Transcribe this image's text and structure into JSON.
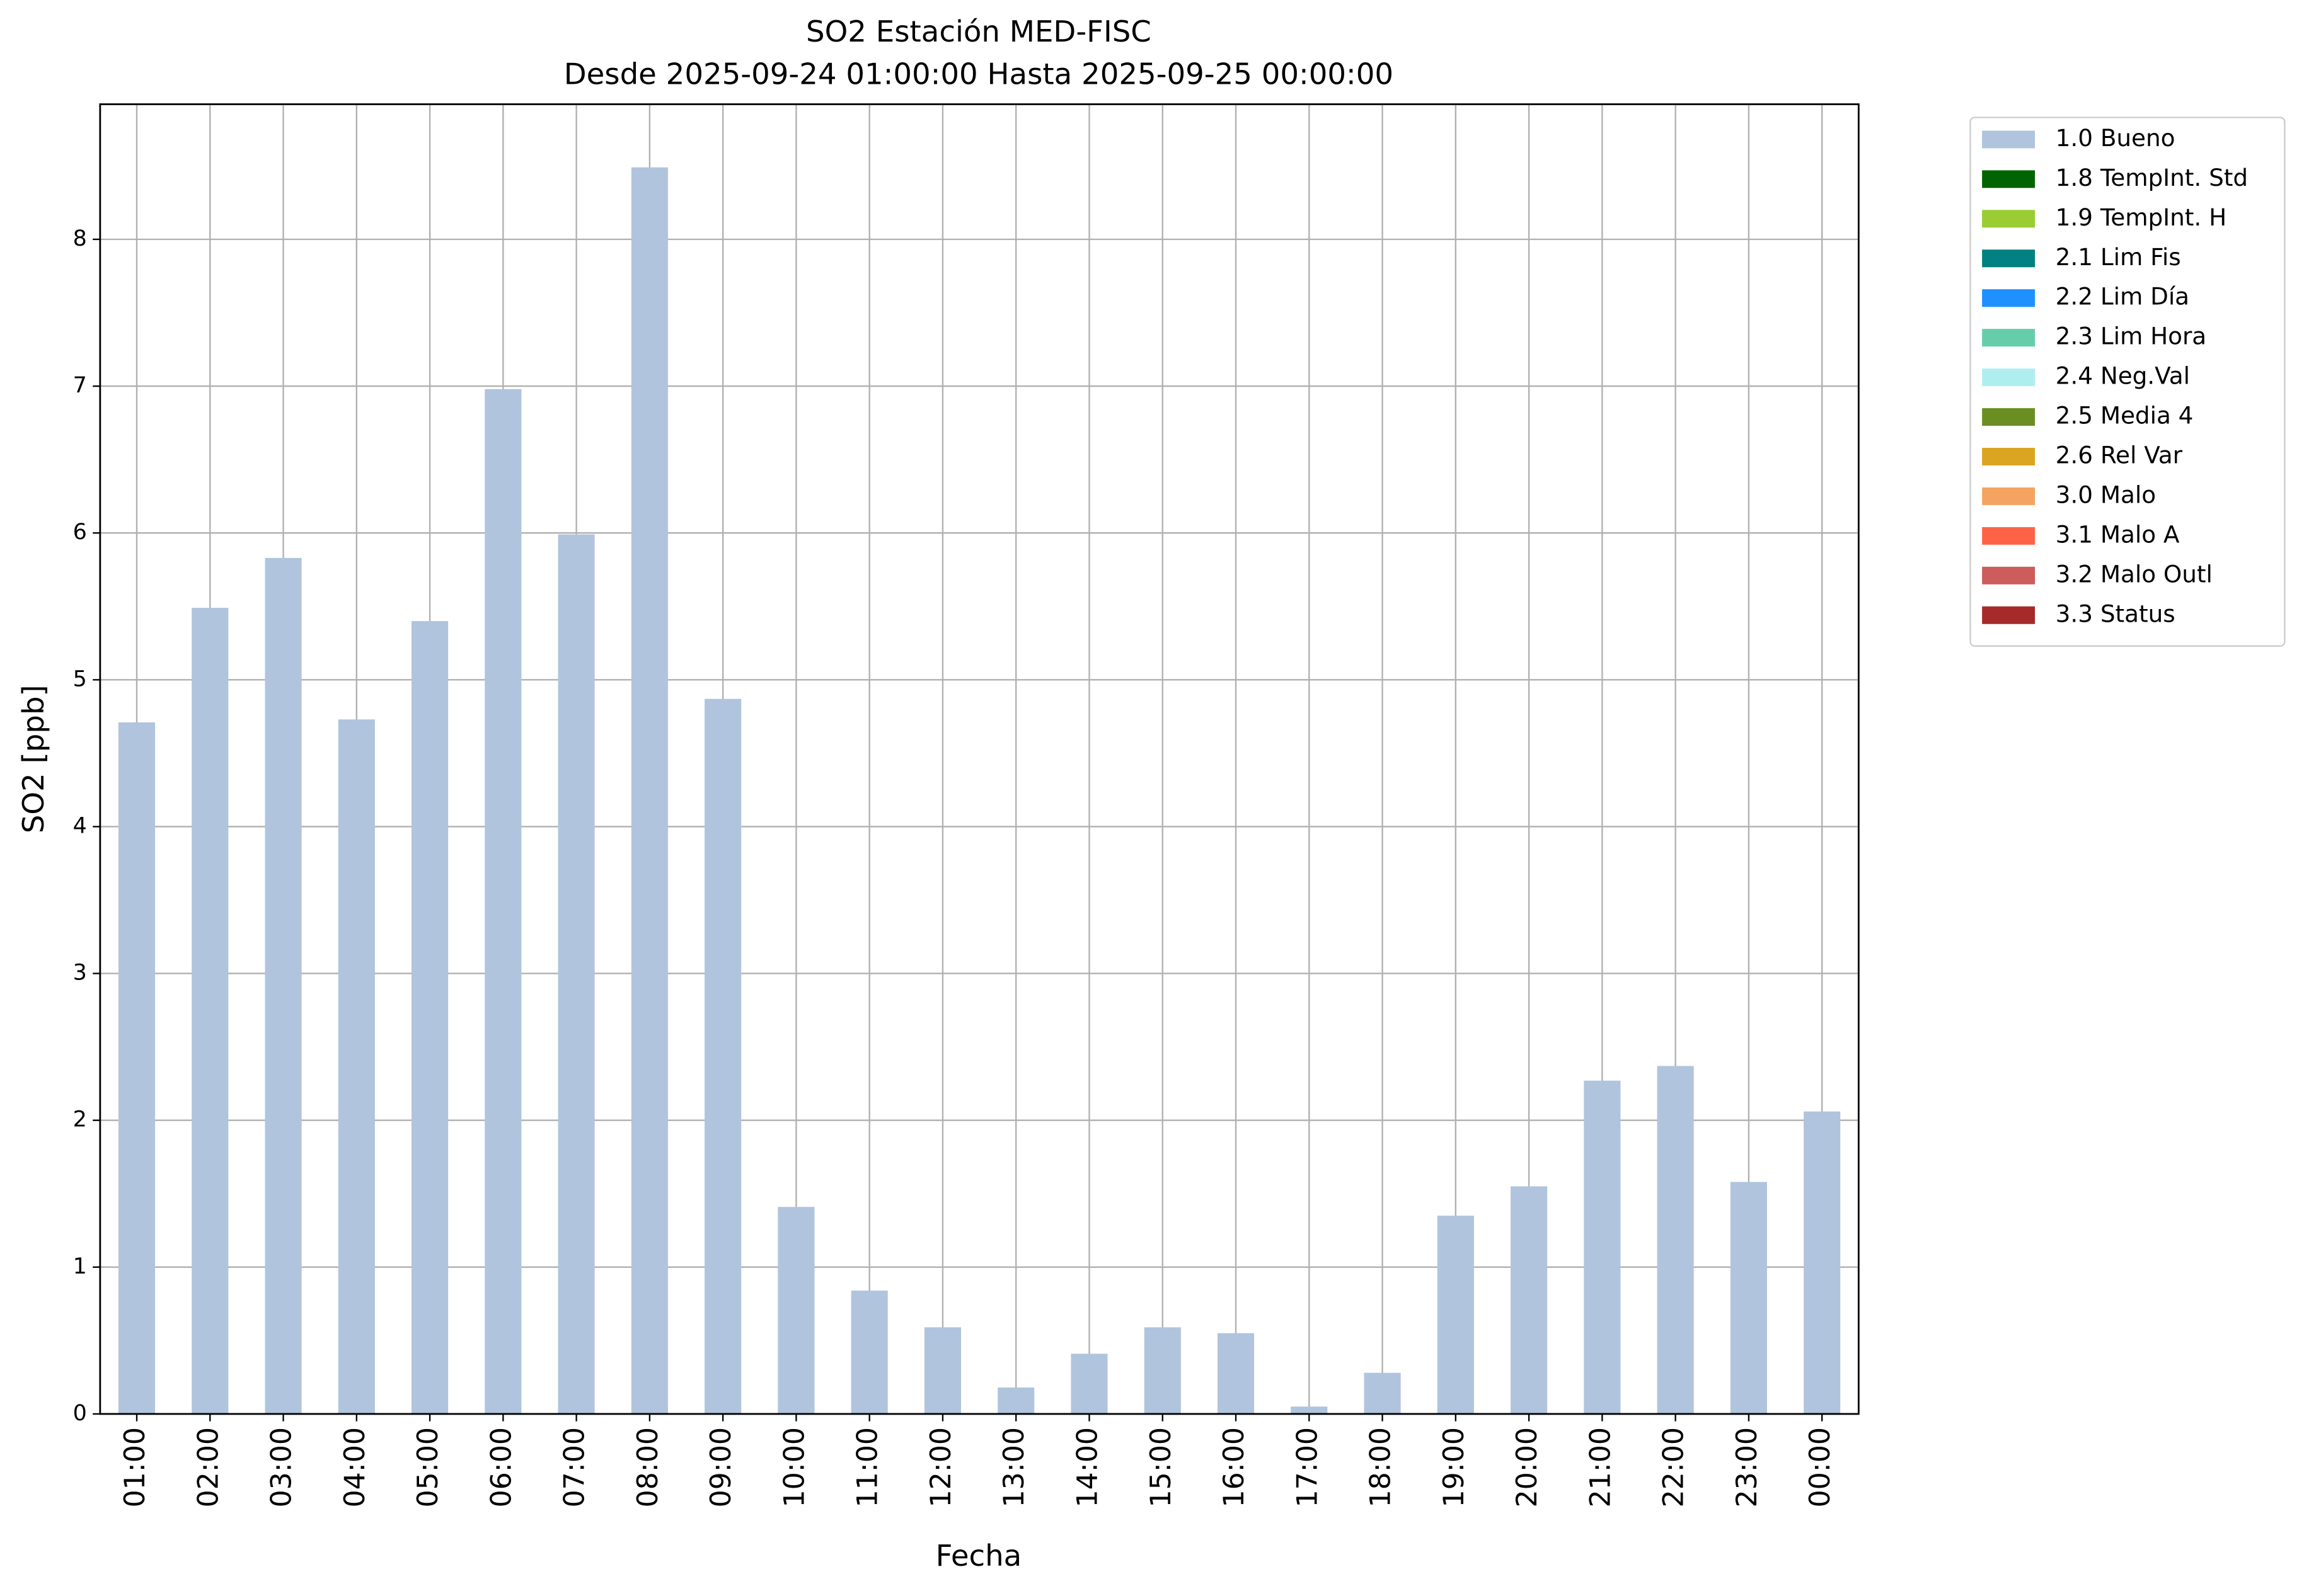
{
  "chart_data": {
    "type": "bar",
    "title": "SO2 Estación MED-FISC",
    "subtitle": "Desde 2025-09-24 01:00:00 Hasta 2025-09-25 00:00:00",
    "x_label": "Fecha",
    "y_label": "SO2 [ppb]",
    "categories": [
      "01:00",
      "02:00",
      "03:00",
      "04:00",
      "05:00",
      "06:00",
      "07:00",
      "08:00",
      "09:00",
      "10:00",
      "11:00",
      "12:00",
      "13:00",
      "14:00",
      "15:00",
      "16:00",
      "17:00",
      "18:00",
      "19:00",
      "20:00",
      "21:00",
      "22:00",
      "23:00",
      "00:00"
    ],
    "series": [
      {
        "name": "1.0 Bueno",
        "color": "#b0c4de",
        "values": [
          4.71,
          5.49,
          5.83,
          4.73,
          5.4,
          6.98,
          5.99,
          8.49,
          4.87,
          1.41,
          0.84,
          0.59,
          0.18,
          0.41,
          0.59,
          0.55,
          0.05,
          0.28,
          1.35,
          1.55,
          2.27,
          2.37,
          1.58,
          2.06
        ]
      },
      {
        "name": "1.8 TempInt. Std",
        "color": "#006400",
        "values": [
          null,
          null,
          null,
          null,
          null,
          null,
          null,
          null,
          null,
          null,
          null,
          null,
          null,
          null,
          null,
          null,
          null,
          null,
          null,
          null,
          null,
          null,
          null,
          null
        ]
      },
      {
        "name": "1.9 TempInt. H",
        "color": "#9acd32",
        "values": [
          null,
          null,
          null,
          null,
          null,
          null,
          null,
          null,
          null,
          null,
          null,
          null,
          null,
          null,
          null,
          null,
          null,
          null,
          null,
          null,
          null,
          null,
          null,
          null
        ]
      },
      {
        "name": "2.1 Lim Fis",
        "color": "#008080",
        "values": [
          null,
          null,
          null,
          null,
          null,
          null,
          null,
          null,
          null,
          null,
          null,
          null,
          null,
          null,
          null,
          null,
          null,
          null,
          null,
          null,
          null,
          null,
          null,
          null
        ]
      },
      {
        "name": "2.2 Lim Día",
        "color": "#1e90ff",
        "values": [
          null,
          null,
          null,
          null,
          null,
          null,
          null,
          null,
          null,
          null,
          null,
          null,
          null,
          null,
          null,
          null,
          null,
          null,
          null,
          null,
          null,
          null,
          null,
          null
        ]
      },
      {
        "name": "2.3 Lim Hora",
        "color": "#66cdaa",
        "values": [
          null,
          null,
          null,
          null,
          null,
          null,
          null,
          null,
          null,
          null,
          null,
          null,
          null,
          null,
          null,
          null,
          null,
          null,
          null,
          null,
          null,
          null,
          null,
          null
        ]
      },
      {
        "name": "2.4 Neg.Val",
        "color": "#afeeee",
        "values": [
          null,
          null,
          null,
          null,
          null,
          null,
          null,
          null,
          null,
          null,
          null,
          null,
          null,
          null,
          null,
          null,
          null,
          null,
          null,
          null,
          null,
          null,
          null,
          null
        ]
      },
      {
        "name": "2.5 Media 4",
        "color": "#6b8e23",
        "values": [
          null,
          null,
          null,
          null,
          null,
          null,
          null,
          null,
          null,
          null,
          null,
          null,
          null,
          null,
          null,
          null,
          null,
          null,
          null,
          null,
          null,
          null,
          null,
          null
        ]
      },
      {
        "name": "2.6 Rel Var",
        "color": "#daa520",
        "values": [
          null,
          null,
          null,
          null,
          null,
          null,
          null,
          null,
          null,
          null,
          null,
          null,
          null,
          null,
          null,
          null,
          null,
          null,
          null,
          null,
          null,
          null,
          null,
          null
        ]
      },
      {
        "name": "3.0 Malo",
        "color": "#f4a460",
        "values": [
          null,
          null,
          null,
          null,
          null,
          null,
          null,
          null,
          null,
          null,
          null,
          null,
          null,
          null,
          null,
          null,
          null,
          null,
          null,
          null,
          null,
          null,
          null,
          null
        ]
      },
      {
        "name": "3.1 Malo A",
        "color": "#ff6347",
        "values": [
          null,
          null,
          null,
          null,
          null,
          null,
          null,
          null,
          null,
          null,
          null,
          null,
          null,
          null,
          null,
          null,
          null,
          null,
          null,
          null,
          null,
          null,
          null,
          null
        ]
      },
      {
        "name": "3.2 Malo Outl",
        "color": "#cd5c5c",
        "values": [
          null,
          null,
          null,
          null,
          null,
          null,
          null,
          null,
          null,
          null,
          null,
          null,
          null,
          null,
          null,
          null,
          null,
          null,
          null,
          null,
          null,
          null,
          null,
          null
        ]
      },
      {
        "name": "3.3 Status",
        "color": "#a52a2a",
        "values": [
          null,
          null,
          null,
          null,
          null,
          null,
          null,
          null,
          null,
          null,
          null,
          null,
          null,
          null,
          null,
          null,
          null,
          null,
          null,
          null,
          null,
          null,
          null,
          null
        ]
      }
    ],
    "ylim": [
      0,
      8.92
    ],
    "yticks": [
      0,
      1,
      2,
      3,
      4,
      5,
      6,
      7,
      8
    ],
    "grid": true,
    "legend": "outside-upper-right"
  }
}
